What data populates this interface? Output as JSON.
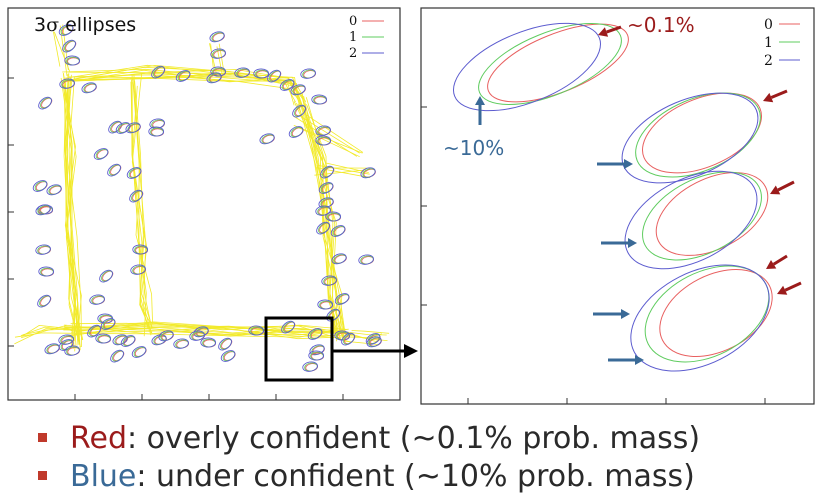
{
  "left_panel": {
    "title_prefix": "3",
    "title_sigma": "σ",
    "title_suffix": " ellipses"
  },
  "legend": {
    "entries": [
      {
        "label": "0",
        "color": "#e86060"
      },
      {
        "label": "1",
        "color": "#5fcc5f"
      },
      {
        "label": "2",
        "color": "#5c5ccf"
      }
    ]
  },
  "right_panel": {
    "annotation_red": "~0.1%",
    "annotation_blue": "~10%",
    "red_color": "#9b1b1b",
    "blue_color": "#3a6a97"
  },
  "colors": {
    "map_trajectory": "#f2ea2a",
    "ellipse_red": "#e86060",
    "ellipse_green": "#5fcc5f",
    "ellipse_blue": "#5c5ccf",
    "bullet": "#c0392b"
  },
  "bullets": [
    {
      "keyword": "Red",
      "rest": ": overly confident (~0.1% prob. mass)"
    },
    {
      "keyword": "Blue",
      "rest": ": under confident (~10% prob. mass)"
    }
  ]
}
